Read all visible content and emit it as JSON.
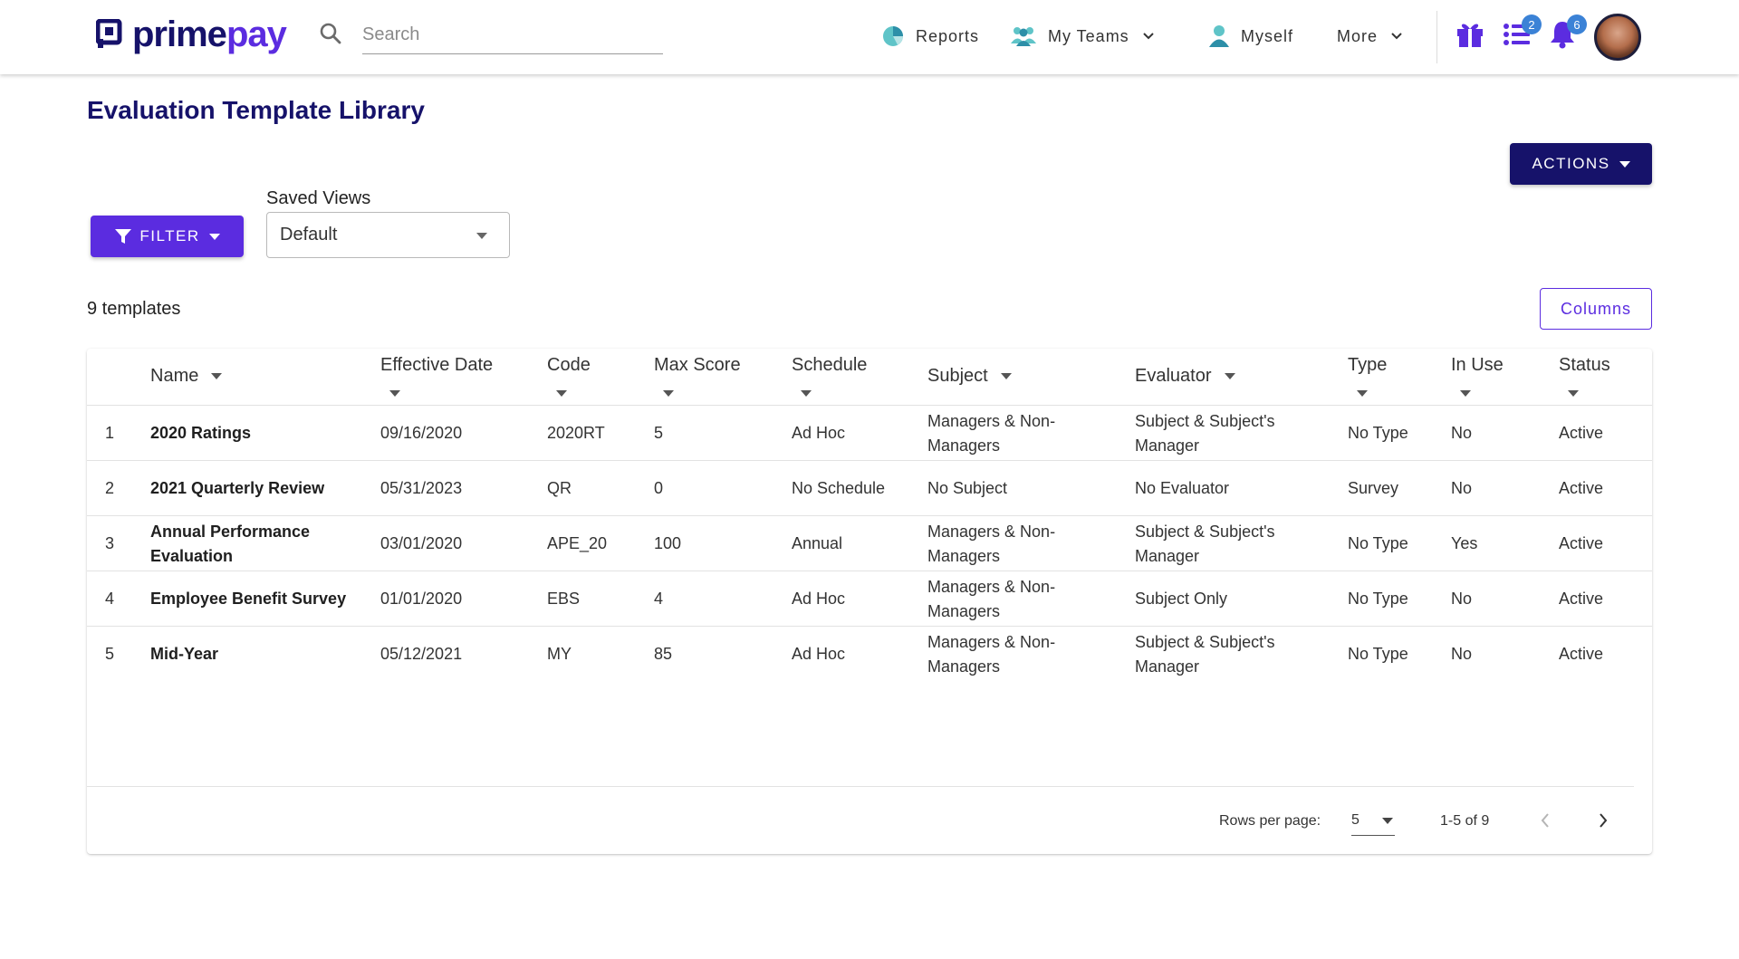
{
  "brand": {
    "name_part1": "prime",
    "name_part2": "pay",
    "primary": "#16126a",
    "accent": "#5b2ce0"
  },
  "search": {
    "placeholder": "Search",
    "value": ""
  },
  "nav": {
    "items": [
      {
        "label": "Reports",
        "icon": "pie-chart-icon"
      },
      {
        "label": "My Teams",
        "icon": "team-icon"
      },
      {
        "label": "Myself",
        "icon": "person-icon"
      },
      {
        "label": "More",
        "icon": "chevron-down-icon"
      }
    ],
    "tasks_badge": "2",
    "notifications_badge": "6"
  },
  "page": {
    "title": "Evaluation Template Library",
    "actions_label": "ACTIONS",
    "filter_label": "FILTER",
    "saved_views_label": "Saved Views",
    "saved_views_value": "Default",
    "count_label": "9 templates",
    "columns_label": "Columns"
  },
  "table": {
    "columns": [
      "Name",
      "Effective Date",
      "Code",
      "Max Score",
      "Schedule",
      "Subject",
      "Evaluator",
      "Type",
      "In Use",
      "Status"
    ],
    "rows": [
      {
        "index": "1",
        "name_line1": "2020 Ratings",
        "name_line2": "",
        "date": "09/16/2020",
        "code": "2020RT",
        "max": "5",
        "schedule": "Ad Hoc",
        "subject_line1": "Managers & Non-",
        "subject_line2": "Managers",
        "evaluator_line1": "Subject & Subject's",
        "evaluator_line2": "Manager",
        "type": "No Type",
        "in_use": "No",
        "status": "Active"
      },
      {
        "index": "2",
        "name_line1": "2021 Quarterly Review",
        "name_line2": "",
        "date": "05/31/2023",
        "code": "QR",
        "max": "0",
        "schedule": "No Schedule",
        "subject_line1": "No Subject",
        "subject_line2": "",
        "evaluator_line1": "No Evaluator",
        "evaluator_line2": "",
        "type": "Survey",
        "in_use": "No",
        "status": "Active"
      },
      {
        "index": "3",
        "name_line1": "Annual Performance",
        "name_line2": "Evaluation",
        "date": "03/01/2020",
        "code": "APE_20",
        "max": "100",
        "schedule": "Annual",
        "subject_line1": "Managers & Non-",
        "subject_line2": "Managers",
        "evaluator_line1": "Subject & Subject's",
        "evaluator_line2": "Manager",
        "type": "No Type",
        "in_use": "Yes",
        "status": "Active"
      },
      {
        "index": "4",
        "name_line1": "Employee Benefit Survey",
        "name_line2": "",
        "date": "01/01/2020",
        "code": "EBS",
        "max": "4",
        "schedule": "Ad Hoc",
        "subject_line1": "Managers & Non-",
        "subject_line2": "Managers",
        "evaluator_line1": "Subject Only",
        "evaluator_line2": "",
        "type": "No Type",
        "in_use": "No",
        "status": "Active"
      },
      {
        "index": "5",
        "name_line1": "Mid-Year",
        "name_line2": "",
        "date": "05/12/2021",
        "code": "MY",
        "max": "85",
        "schedule": "Ad Hoc",
        "subject_line1": "Managers & Non-",
        "subject_line2": "Managers",
        "evaluator_line1": "Subject & Subject's",
        "evaluator_line2": "Manager",
        "type": "No Type",
        "in_use": "No",
        "status": "Active"
      }
    ]
  },
  "pagination": {
    "rows_per_page_label": "Rows per page:",
    "rows_per_page": "5",
    "range": "1-5 of 9"
  }
}
